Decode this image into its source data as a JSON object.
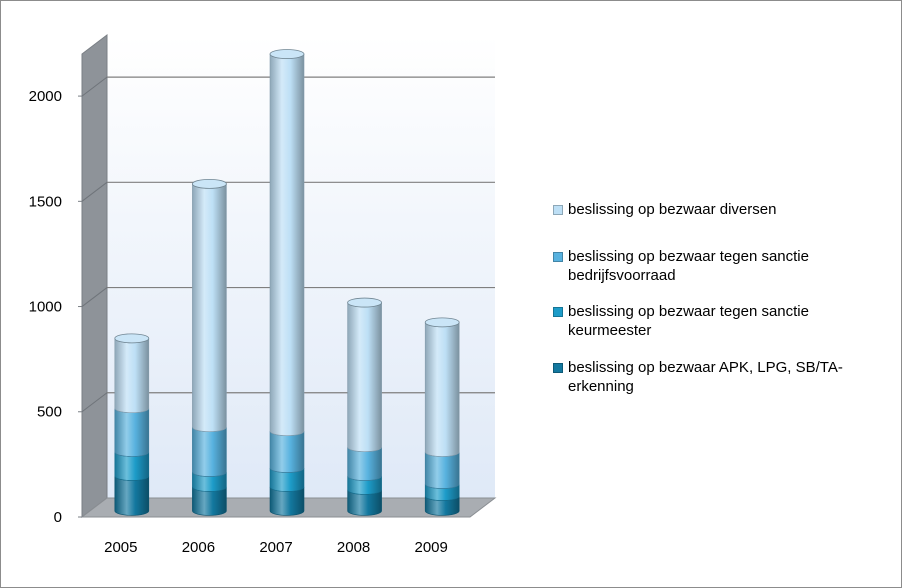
{
  "chart_data": {
    "type": "bar3d-cylinder-stacked",
    "categories": [
      "2005",
      "2006",
      "2007",
      "2008",
      "2009"
    ],
    "series": [
      {
        "name": "beslissing op bezwaar APK, LPG, SB/TA-erkenning",
        "color": "#13789f",
        "values": [
          166,
          114,
          114,
          100,
          71
        ]
      },
      {
        "name": "beslissing op bezwaar tegen sanctie keurmeester",
        "color": "#1d9cc9",
        "values": [
          114,
          71,
          90,
          66,
          57
        ]
      },
      {
        "name": "beslissing op bezwaar tegen sanctie bedrijfsvoorraad",
        "color": "#58b2df",
        "values": [
          208,
          213,
          175,
          137,
          152
        ]
      },
      {
        "name": "beslissing op bezwaar diversen",
        "color": "#bddff5",
        "values": [
          332,
          1156,
          1792,
          687,
          616
        ]
      }
    ],
    "ylim": [
      0,
      2200
    ],
    "yticks": [
      0,
      500,
      1000,
      1500,
      2000
    ],
    "grid": true
  }
}
